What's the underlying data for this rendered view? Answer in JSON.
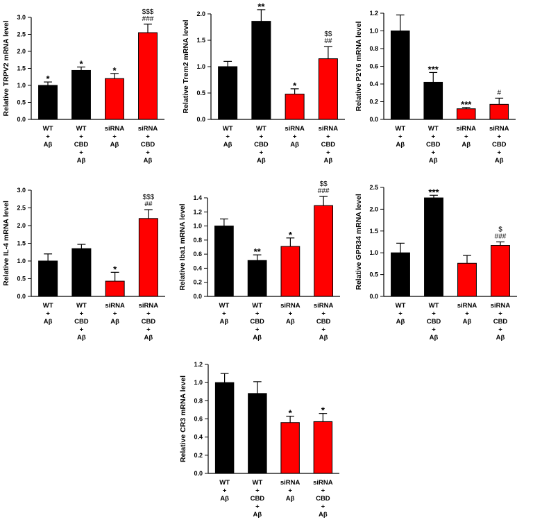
{
  "colors": {
    "black_bar": "#000000",
    "red_bar": "#ff0000"
  },
  "chart_data": [
    {
      "type": "bar",
      "ylabel": "Relative TRPV2 mRNA level",
      "ylim": [
        0,
        3.0
      ],
      "yticks": [
        "0.0",
        "0.5",
        "1.0",
        "1.5",
        "2.0",
        "2.5",
        "3.0"
      ],
      "categories": [
        [
          "WT",
          "+",
          "Aβ"
        ],
        [
          "WT",
          "+",
          "CBD",
          "+",
          "Aβ"
        ],
        [
          "siRNA",
          "+",
          "Aβ"
        ],
        [
          "siRNA",
          "+",
          "CBD",
          "+",
          "Aβ"
        ]
      ],
      "values": [
        1.0,
        1.44,
        1.2,
        2.55
      ],
      "errors": [
        0.1,
        0.1,
        0.15,
        0.25
      ],
      "colors": [
        "black",
        "black",
        "red",
        "red"
      ],
      "annotations": [
        [
          "*"
        ],
        [
          "*"
        ],
        [
          "*"
        ],
        [
          "###",
          "$$$"
        ]
      ]
    },
    {
      "type": "bar",
      "ylabel": "Relative Trem2 mRNA level",
      "ylim": [
        0,
        2.0
      ],
      "yticks": [
        "0.0",
        "0.5",
        "1.0",
        "1.5",
        "2.0"
      ],
      "categories": [
        [
          "WT",
          "+",
          "Aβ"
        ],
        [
          "WT",
          "+",
          "CBD",
          "+",
          "Aβ"
        ],
        [
          "siRNA",
          "+",
          "Aβ"
        ],
        [
          "siRNA",
          "+",
          "CBD",
          "+",
          "Aβ"
        ]
      ],
      "values": [
        1.0,
        1.86,
        0.48,
        1.15
      ],
      "errors": [
        0.1,
        0.22,
        0.1,
        0.23
      ],
      "colors": [
        "black",
        "black",
        "red",
        "red"
      ],
      "annotations": [
        [],
        [
          "**"
        ],
        [
          "*"
        ],
        [
          "##",
          "$$"
        ]
      ]
    },
    {
      "type": "bar",
      "ylabel": "Relative P2Y6 mRNA level",
      "ylim": [
        0,
        1.2
      ],
      "yticks": [
        "0.0",
        "0.2",
        "0.4",
        "0.6",
        "0.8",
        "1.0",
        "1.2"
      ],
      "categories": [
        [
          "WT",
          "+",
          "Aβ"
        ],
        [
          "WT",
          "+",
          "CBD",
          "+",
          "Aβ"
        ],
        [
          "siRNA",
          "+",
          "Aβ"
        ],
        [
          "siRNA",
          "+",
          "CBD",
          "+",
          "Aβ"
        ]
      ],
      "values": [
        1.0,
        0.42,
        0.12,
        0.17
      ],
      "errors": [
        0.18,
        0.11,
        0.015,
        0.07
      ],
      "colors": [
        "black",
        "black",
        "red",
        "red"
      ],
      "annotations": [
        [],
        [
          "***"
        ],
        [
          "***"
        ],
        [
          "#"
        ]
      ]
    },
    {
      "type": "bar",
      "ylabel": "Relative IL-4 mRNA level",
      "ylim": [
        0,
        3.0
      ],
      "yticks": [
        "0.0",
        "0.5",
        "1.0",
        "1.5",
        "2.0",
        "2.5",
        "3.0"
      ],
      "categories": [
        [
          "WT",
          "+",
          "Aβ"
        ],
        [
          "WT",
          "+",
          "CBD",
          "+",
          "Aβ"
        ],
        [
          "siRNA",
          "+",
          "Aβ"
        ],
        [
          "siRNA",
          "+",
          "CBD",
          "+",
          "Aβ"
        ]
      ],
      "values": [
        1.0,
        1.35,
        0.43,
        2.2
      ],
      "errors": [
        0.2,
        0.12,
        0.25,
        0.25
      ],
      "colors": [
        "black",
        "black",
        "red",
        "red"
      ],
      "annotations": [
        [],
        [],
        [
          "*"
        ],
        [
          "##",
          "$$$"
        ]
      ]
    },
    {
      "type": "bar",
      "ylabel": "Relative Iba1 mRNA level",
      "ylim": [
        0,
        1.4
      ],
      "yticks": [
        "0.0",
        "0.2",
        "0.4",
        "0.6",
        "0.8",
        "1.0",
        "1.2",
        "1.4"
      ],
      "categories": [
        [
          "WT",
          "+",
          "Aβ"
        ],
        [
          "WT",
          "+",
          "CBD",
          "+",
          "Aβ"
        ],
        [
          "siRNA",
          "+",
          "Aβ"
        ],
        [
          "siRNA",
          "+",
          "CBD",
          "+",
          "Aβ"
        ]
      ],
      "values": [
        1.0,
        0.51,
        0.71,
        1.29
      ],
      "errors": [
        0.1,
        0.08,
        0.12,
        0.13
      ],
      "colors": [
        "black",
        "black",
        "red",
        "red"
      ],
      "annotations": [
        [],
        [
          "**"
        ],
        [
          "*"
        ],
        [
          "###",
          "$$"
        ]
      ]
    },
    {
      "type": "bar",
      "ylabel": "Relative GPR34 mRNA level",
      "ylim": [
        0,
        2.5
      ],
      "yticks": [
        "0.0",
        "0.5",
        "1.0",
        "1.5",
        "2.0",
        "2.5"
      ],
      "categories": [
        [
          "WT",
          "+",
          "Aβ"
        ],
        [
          "WT",
          "+",
          "CBD",
          "+",
          "Aβ"
        ],
        [
          "siRNA",
          "+",
          "Aβ"
        ],
        [
          "siRNA",
          "+",
          "CBD",
          "+",
          "Aβ"
        ]
      ],
      "values": [
        1.0,
        2.26,
        0.76,
        1.17
      ],
      "errors": [
        0.22,
        0.06,
        0.18,
        0.08
      ],
      "colors": [
        "black",
        "black",
        "red",
        "red"
      ],
      "annotations": [
        [],
        [
          "***"
        ],
        [],
        [
          "###",
          "$"
        ]
      ]
    },
    {
      "type": "bar",
      "ylabel": "Relative CR3 mRNA level",
      "ylim": [
        0,
        1.2
      ],
      "yticks": [
        "0.0",
        "0.2",
        "0.4",
        "0.6",
        "0.8",
        "1.0",
        "1.2"
      ],
      "categories": [
        [
          "WT",
          "+",
          "Aβ"
        ],
        [
          "WT",
          "+",
          "CBD",
          "+",
          "Aβ"
        ],
        [
          "siRNA",
          "+",
          "Aβ"
        ],
        [
          "siRNA",
          "+",
          "CBD",
          "+",
          "Aβ"
        ]
      ],
      "values": [
        1.0,
        0.88,
        0.56,
        0.57
      ],
      "errors": [
        0.1,
        0.13,
        0.07,
        0.09
      ],
      "colors": [
        "black",
        "black",
        "red",
        "red"
      ],
      "annotations": [
        [],
        [],
        [
          "*"
        ],
        [
          "*"
        ]
      ]
    }
  ]
}
